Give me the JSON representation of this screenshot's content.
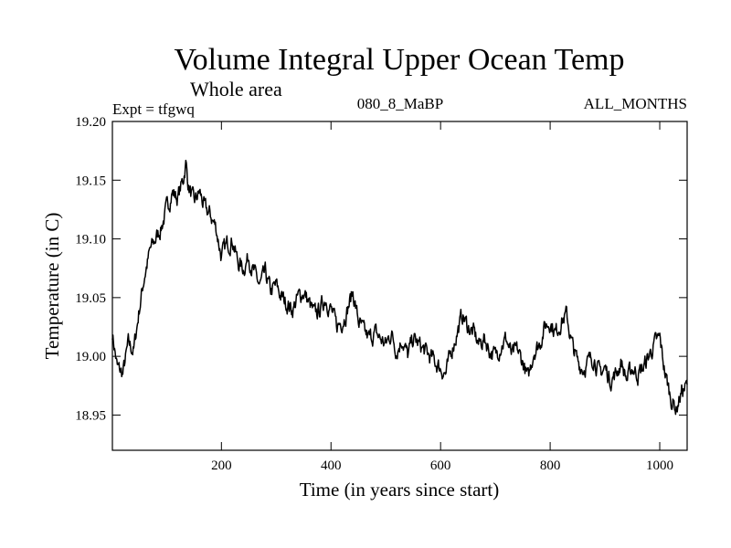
{
  "chart_data": {
    "type": "line",
    "title": "Volume Integral Upper Ocean Temp",
    "subtitle": "Whole area",
    "header_left": "Expt = tfgwq",
    "header_center": "080_8_MaBP",
    "header_right": "ALL_MONTHS",
    "xlabel": "Time (in years since start)",
    "ylabel": "Temperature (in C)",
    "xlim": [
      1,
      1050
    ],
    "ylim": [
      18.92,
      19.2
    ],
    "xticks": [
      200,
      400,
      600,
      800,
      1000
    ],
    "xtick_labels": [
      "200",
      "400",
      "600",
      "800",
      "1000"
    ],
    "yticks": [
      18.95,
      19.0,
      19.05,
      19.1,
      19.15,
      19.2
    ],
    "ytick_labels": [
      "18.95",
      "19.00",
      "19.05",
      "19.10",
      "19.15",
      "19.20"
    ],
    "grid": false,
    "series": [
      {
        "name": "Volume integral upper ocean temperature",
        "x": [
          1,
          10,
          20,
          30,
          40,
          50,
          60,
          70,
          80,
          90,
          100,
          110,
          120,
          130,
          135,
          140,
          150,
          160,
          170,
          180,
          190,
          200,
          210,
          220,
          230,
          240,
          250,
          260,
          270,
          280,
          290,
          300,
          310,
          320,
          330,
          340,
          350,
          360,
          370,
          380,
          390,
          400,
          410,
          420,
          430,
          440,
          450,
          460,
          470,
          480,
          490,
          500,
          510,
          520,
          530,
          540,
          550,
          560,
          570,
          580,
          590,
          600,
          610,
          620,
          630,
          640,
          650,
          660,
          670,
          680,
          690,
          700,
          710,
          720,
          730,
          740,
          750,
          760,
          770,
          780,
          790,
          800,
          810,
          820,
          830,
          840,
          850,
          860,
          870,
          880,
          890,
          900,
          910,
          920,
          930,
          940,
          950,
          960,
          970,
          980,
          990,
          1000,
          1010,
          1020,
          1030,
          1040,
          1050
        ],
        "values": [
          19.02,
          18.99,
          18.985,
          19.01,
          19.005,
          19.04,
          19.07,
          19.09,
          19.1,
          19.11,
          19.125,
          19.14,
          19.135,
          19.15,
          19.165,
          19.145,
          19.13,
          19.14,
          19.125,
          19.12,
          19.11,
          19.085,
          19.095,
          19.1,
          19.08,
          19.075,
          19.085,
          19.07,
          19.06,
          19.07,
          19.055,
          19.06,
          19.05,
          19.045,
          19.04,
          19.05,
          19.055,
          19.045,
          19.035,
          19.04,
          19.05,
          19.04,
          19.025,
          19.03,
          19.04,
          19.055,
          19.03,
          19.02,
          19.015,
          19.02,
          19.015,
          19.01,
          19.02,
          19.005,
          19.015,
          19.0,
          19.015,
          19.01,
          19.005,
          19.0,
          18.995,
          18.99,
          18.985,
          19.005,
          19.02,
          19.035,
          19.025,
          19.02,
          19.01,
          19.015,
          19.005,
          19.0,
          19.01,
          19.015,
          19.0,
          19.005,
          18.995,
          18.98,
          19.005,
          19.01,
          19.025,
          19.03,
          19.02,
          19.03,
          19.035,
          19.01,
          18.995,
          18.99,
          18.995,
          19.0,
          18.985,
          18.99,
          18.98,
          18.985,
          18.995,
          18.98,
          18.99,
          18.985,
          18.99,
          19.0,
          19.01,
          19.015,
          18.985,
          18.965,
          18.955,
          18.97,
          18.975
        ]
      }
    ]
  }
}
